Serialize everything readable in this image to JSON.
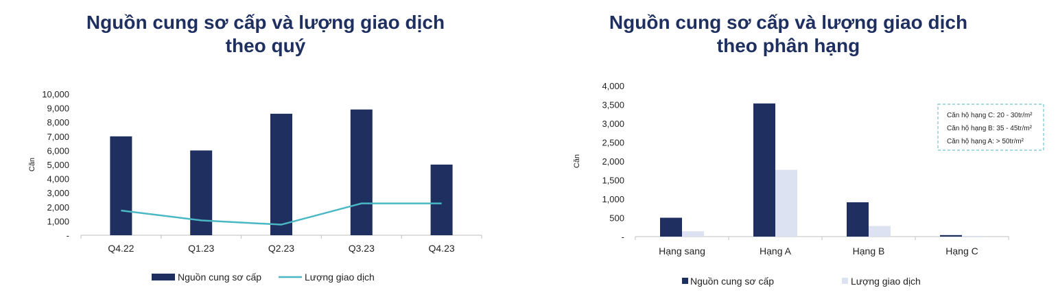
{
  "colors": {
    "navy": "#1f3060",
    "teal": "#4ab8c4",
    "light": "#dde2f3",
    "axis": "#bfbfbf",
    "annotation_border": "#6cc3cf"
  },
  "left": {
    "title_line1": "Nguồn cung sơ cấp và lượng giao dịch",
    "title_line2": "theo quý",
    "legend_bar": "Nguồn cung sơ cấp",
    "legend_line": "Lượng giao dịch",
    "chart_data": {
      "type": "bar",
      "categories": [
        "Q4.22",
        "Q1.23",
        "Q2.23",
        "Q3.23",
        "Q4.23"
      ],
      "series": [
        {
          "name": "Nguồn cung sơ cấp",
          "type": "bar",
          "values": [
            7000,
            6000,
            8600,
            8900,
            5000
          ]
        },
        {
          "name": "Lượng giao dịch",
          "type": "line",
          "values": [
            1750,
            1050,
            750,
            2250,
            2250
          ]
        }
      ],
      "ylabel": "Căn",
      "ylim": [
        0,
        10000
      ],
      "yticks": [
        0,
        1000,
        2000,
        3000,
        4000,
        5000,
        6000,
        7000,
        8000,
        9000,
        10000
      ],
      "ytick_labels": [
        "-",
        "1,000",
        "2,000",
        "3,000",
        "4,000",
        "5,000",
        "6,000",
        "7,000",
        "8,000",
        "9,000",
        "10,000"
      ],
      "legend_position": "bottom",
      "grid": false
    }
  },
  "right": {
    "title_line1": "Nguồn cung sơ cấp và lượng giao dịch",
    "title_line2": "theo phân hạng",
    "legend_1": "Nguồn cung sơ cấp",
    "legend_2": "Lượng giao dịch",
    "annotation": [
      "Căn hộ hạng C: 20 - 30tr/m²",
      "Căn hộ hạng B: 35 - 45tr/m²",
      "Căn hộ hạng A: > 50tr/m²"
    ],
    "chart_data": {
      "type": "bar",
      "categories": [
        "Hạng sang",
        "Hạng A",
        "Hạng B",
        "Hạng C"
      ],
      "series": [
        {
          "name": "Nguồn cung sơ cấp",
          "values": [
            500,
            3530,
            910,
            40
          ]
        },
        {
          "name": "Lượng giao dịch",
          "values": [
            140,
            1770,
            280,
            20
          ]
        }
      ],
      "ylabel": "Căn",
      "ylim": [
        0,
        4000
      ],
      "yticks": [
        0,
        500,
        1000,
        1500,
        2000,
        2500,
        3000,
        3500,
        4000
      ],
      "ytick_labels": [
        "-",
        "500",
        "1,000",
        "1,500",
        "2,000",
        "2,500",
        "3,000",
        "3,500",
        "4,000"
      ],
      "legend_position": "bottom",
      "grid": false
    }
  }
}
